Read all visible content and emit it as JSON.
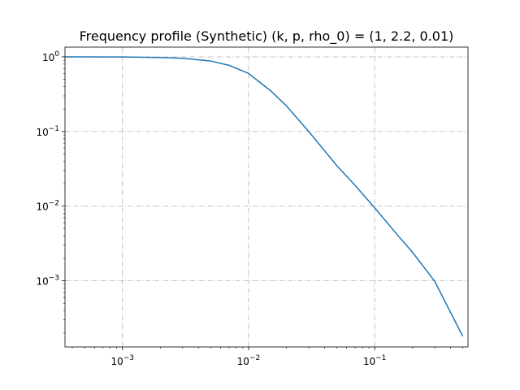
{
  "chart_data": {
    "type": "line",
    "title": "Frequency profile (Synthetic) (k, p, rho_0) = (1, 2.2, 0.01)",
    "xlabel": "",
    "ylabel": "",
    "x_scale": "log",
    "y_scale": "log",
    "xlim": [
      0.00035,
      0.55
    ],
    "ylim": [
      0.00013,
      1.35
    ],
    "grid": true,
    "grid_style": "dash-dot",
    "line_color": "#1f77b4",
    "x_ticks": [
      {
        "value": 0.001,
        "base": "10",
        "exp": "−3"
      },
      {
        "value": 0.01,
        "base": "10",
        "exp": "−2"
      },
      {
        "value": 0.1,
        "base": "10",
        "exp": "−1"
      }
    ],
    "y_ticks": [
      {
        "value": 1,
        "base": "10",
        "exp": "0"
      },
      {
        "value": 0.1,
        "base": "10",
        "exp": "−1"
      },
      {
        "value": 0.01,
        "base": "10",
        "exp": "−2"
      },
      {
        "value": 0.001,
        "base": "10",
        "exp": "−3"
      }
    ],
    "series": [
      {
        "x": [
          0.00035,
          0.0005,
          0.001,
          0.002,
          0.003,
          0.005,
          0.007,
          0.01,
          0.015,
          0.02,
          0.03,
          0.05,
          0.07,
          0.1,
          0.15,
          0.2,
          0.3,
          0.5
        ],
        "values": [
          1.0,
          1.0,
          0.995,
          0.98,
          0.955,
          0.88,
          0.77,
          0.6,
          0.35,
          0.22,
          0.1,
          0.035,
          0.019,
          0.0095,
          0.0042,
          0.0024,
          0.00098,
          0.00018
        ]
      }
    ]
  }
}
